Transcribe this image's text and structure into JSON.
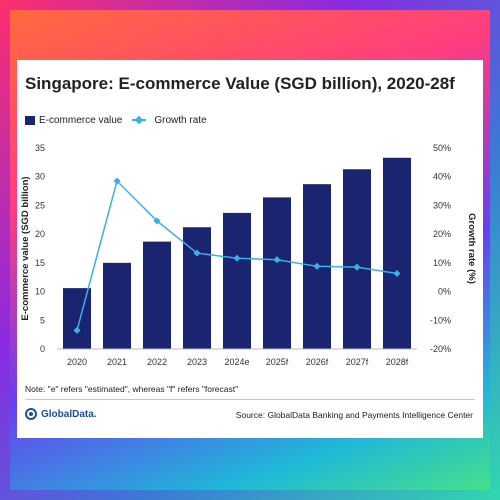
{
  "chart_data": {
    "type": "bar",
    "title": "Singapore: E-commerce Value (SGD billion), 2020-28f",
    "categories": [
      "2020",
      "2021",
      "2022",
      "2023",
      "2024e",
      "2025f",
      "2026f",
      "2027f",
      "2028f"
    ],
    "series": [
      {
        "name": "E-commerce value",
        "type": "bar",
        "axis": "left",
        "color": "#1a2470",
        "values": [
          10.6,
          15.0,
          18.7,
          21.2,
          23.7,
          26.4,
          28.7,
          31.3,
          33.3
        ]
      },
      {
        "name": "Growth rate",
        "type": "line",
        "axis": "right",
        "color": "#3ab0e8",
        "values": [
          -13.5,
          38.5,
          24.6,
          13.4,
          11.6,
          11.1,
          8.8,
          8.5,
          6.3
        ]
      }
    ],
    "ylabel": "E-commerce value (SGD billion)",
    "ylim": [
      0,
      35
    ],
    "yticks": [
      "0",
      "5",
      "10",
      "15",
      "20",
      "25",
      "30",
      "35"
    ],
    "y2label": "Growth rate (%)",
    "y2lim": [
      -20,
      50
    ],
    "y2ticks": [
      "-20%",
      "-10%",
      "0%",
      "10%",
      "20%",
      "30%",
      "40%",
      "50%"
    ],
    "grid": false,
    "legend_position": "top-left"
  },
  "legend": {
    "bar_label": "E-commerce value",
    "line_label": "Growth rate"
  },
  "note": "Note: \"e\" refers \"estimated\", whereas \"f\" refers \"forecast\"",
  "logo_text": "GlobalData.",
  "source": "Source: GlobalData Banking and Payments Intelligence Center",
  "colors": {
    "bar": "#1a2470",
    "line": "#3ab0e8"
  }
}
